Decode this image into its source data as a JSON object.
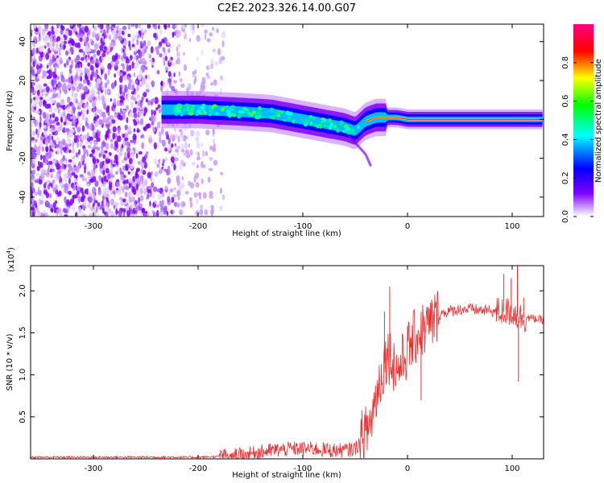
{
  "figure_title": "C2E2.2023.326.14.00.G07",
  "chart_data": [
    {
      "type": "heatmap",
      "xlabel": "Height of straight line (km)",
      "ylabel": "Frequency (Hz)",
      "xlim": [
        -360,
        130
      ],
      "ylim": [
        -50,
        49
      ],
      "xticks": [
        -300,
        -200,
        -100,
        0,
        100
      ],
      "yticks": [
        -40,
        -20,
        0,
        20,
        40
      ],
      "xtick_labels": [
        "-300",
        "-200",
        "-100",
        "0",
        "100"
      ],
      "ytick_labels": [
        "-40",
        "-20",
        "0",
        "20",
        "40"
      ],
      "colorbar": {
        "label": "Normalized spectral amplitude",
        "range": [
          0,
          1
        ],
        "ticks": [
          0.0,
          0.2,
          0.4,
          0.6,
          0.8
        ],
        "tick_labels": [
          "0.0",
          "0.2",
          "0.4",
          "0.6",
          "0.8"
        ],
        "colors": [
          "#ffffff",
          "#8000ff",
          "#0000ff",
          "#00ffff",
          "#00ff00",
          "#ffff00",
          "#ff0000",
          "#ff0080"
        ]
      },
      "centerline": {
        "x": [
          -230,
          -200,
          -160,
          -130,
          -100,
          -80,
          -60,
          -50,
          -40,
          -30,
          -20,
          -10,
          0,
          20,
          60,
          100,
          130
        ],
        "y": [
          5,
          5,
          4,
          3,
          0,
          -2,
          -4,
          -6,
          -1,
          1,
          1,
          1,
          0,
          0,
          0,
          0,
          0
        ]
      },
      "noise_region": {
        "x": [
          -360,
          -175
        ],
        "y": [
          -50,
          49
        ]
      }
    },
    {
      "type": "line",
      "xlabel": "Height of straight line (km)",
      "ylabel": "SNR (10 * v/v)",
      "y_multiplier": "(x10",
      "y_multiplier_exp": "4",
      "y_multiplier_close": ")",
      "xlim": [
        -360,
        130
      ],
      "ylim": [
        0,
        2.3
      ],
      "xticks": [
        -300,
        -200,
        -100,
        0,
        100
      ],
      "yticks": [
        0.5,
        1.0,
        1.5,
        2.0
      ],
      "xtick_labels": [
        "-300",
        "-200",
        "-100",
        "0",
        "100"
      ],
      "ytick_labels": [
        "0.5",
        "1.0",
        "1.5",
        "2.0"
      ],
      "series": [
        {
          "color": "#e83030",
          "x": [
            -360,
            -300,
            -250,
            -200,
            -170,
            -150,
            -130,
            -110,
            -90,
            -70,
            -60,
            -50,
            -40,
            -35,
            -30,
            -25,
            -20,
            -15,
            -10,
            -5,
            0,
            5,
            10,
            20,
            30,
            40,
            50,
            60,
            70,
            80,
            90,
            100,
            105,
            110,
            115,
            120,
            130
          ],
          "y": [
            0.02,
            0.02,
            0.02,
            0.02,
            0.03,
            0.06,
            0.1,
            0.12,
            0.12,
            0.1,
            0.1,
            0.12,
            0.3,
            0.45,
            0.75,
            1.0,
            1.25,
            1.2,
            1.05,
            1.15,
            1.3,
            1.4,
            1.5,
            1.58,
            1.72,
            1.76,
            1.78,
            1.78,
            1.77,
            1.76,
            1.75,
            1.75,
            1.7,
            1.68,
            1.68,
            1.67,
            1.65
          ]
        }
      ],
      "spikes": [
        {
          "x": -17,
          "y": 2.05
        },
        {
          "x": -22,
          "y": 1.75
        },
        {
          "x": 13,
          "y": 0.7
        },
        {
          "x": 92,
          "y": 2.2
        },
        {
          "x": 99,
          "y": 2.15
        },
        {
          "x": 105,
          "y": 2.3
        },
        {
          "x": 106,
          "y": 0.92
        },
        {
          "x": 111,
          "y": 1.92
        }
      ]
    }
  ]
}
